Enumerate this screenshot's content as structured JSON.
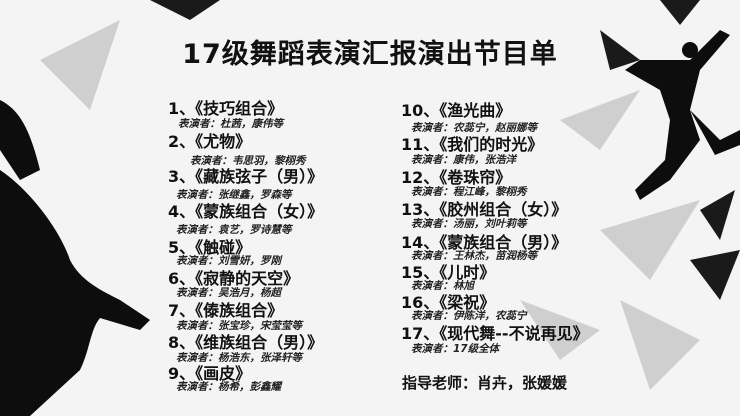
{
  "title": "17级舞蹈表演汇报演出节目单",
  "performer_prefix": "表演者：",
  "programs": [
    {
      "number": "1、",
      "name": "《技巧组合》",
      "performers": "杜茜，康伟等"
    },
    {
      "number": "2、",
      "name": "《尤物》",
      "performers": "韦思羽，黎栩秀"
    },
    {
      "number": "3、",
      "name": "《藏族弦子（男）》",
      "performers": "张继鑫，罗森等"
    },
    {
      "number": "4、",
      "name": "《蒙族组合（女）》",
      "performers": "袁艺，罗诗慧等"
    },
    {
      "number": "5、",
      "name": "《触碰》",
      "performers": "刘雪妍，罗刚"
    },
    {
      "number": "6、",
      "name": "《寂静的天空》",
      "performers": "吴浩月，杨超"
    },
    {
      "number": "7、",
      "name": "《傣族组合》",
      "performers": "张宝珍，宋莹莹等"
    },
    {
      "number": "8、",
      "name": "《维族组合（男）》",
      "performers": "杨浩东，张泽轩等"
    },
    {
      "number": "9、",
      "name": "《画皮》",
      "performers": "杨希，彭鑫耀"
    },
    {
      "number": "10、",
      "name": "《渔光曲》",
      "performers": "农蕊宁，赵丽娜等"
    },
    {
      "number": "11、",
      "name": "《我们的时光》",
      "performers": "康伟，张浩洋"
    },
    {
      "number": "12、",
      "name": "《卷珠帘》",
      "performers": "程江峰，黎栩秀"
    },
    {
      "number": "13、",
      "name": "《胶州组合（女）》",
      "performers": "汤丽，刘叶莉等"
    },
    {
      "number": "14、",
      "name": "《蒙族组合（男）》",
      "performers": "王林杰，苗润杨等"
    },
    {
      "number": "15、",
      "name": "《儿时》",
      "performers": "林旭"
    },
    {
      "number": "16、",
      "name": "《梁祝》",
      "performers": "伊陈洋，农蕊宁"
    },
    {
      "number": "17、",
      "name": "《现代舞--不说再见》",
      "performers": "17级全体"
    }
  ],
  "teacher": "指导老师：肖卉，张媛媛"
}
